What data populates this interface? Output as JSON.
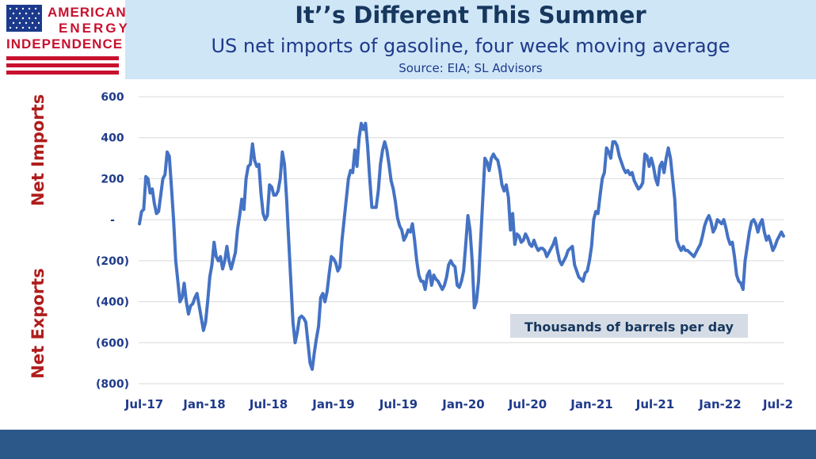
{
  "header": {
    "title": "It’’s Different This Summer",
    "subtitle": "US net imports of gasoline, four week moving average",
    "source": "Source: EIA; SL Advisors"
  },
  "logo": {
    "line1": "AMERICAN",
    "line2": "ENERGY",
    "line3": "INDEPENDENCE"
  },
  "side_labels": {
    "top": "Net Imports",
    "bottom": "Net Exports"
  },
  "colors": {
    "line": "#4472c4",
    "header_bg": "#cfe6f7",
    "title": "#17375e",
    "side_label": "#b01c1c",
    "footer": "#2c5789",
    "unit_box": "#d6dce5"
  },
  "chart_data": {
    "type": "line",
    "title": "It’’s Different This Summer",
    "subtitle": "US net imports of gasoline, four week moving average",
    "unit_label": "Thousands of barrels per day",
    "x_tick_labels": [
      "Jul-17",
      "Jan-18",
      "Jul-18",
      "Jan-19",
      "Jul-19",
      "Jan-20",
      "Jul-20",
      "Jan-21",
      "Jul-21",
      "Jan-22",
      "Jul-2"
    ],
    "y_tick_labels": [
      "600",
      "400",
      "200",
      "-",
      "(200)",
      "(400)",
      "(600)",
      "(800)"
    ],
    "ylim": [
      -800,
      600
    ],
    "grid": true,
    "series": [
      {
        "values": [
          -20,
          40,
          50,
          210,
          200,
          130,
          150,
          80,
          30,
          40,
          120,
          200,
          220,
          330,
          310,
          160,
          0,
          -200,
          -300,
          -400,
          -380,
          -310,
          -400,
          -460,
          -420,
          -410,
          -380,
          -360,
          -420,
          -480,
          -540,
          -500,
          -400,
          -280,
          -220,
          -110,
          -180,
          -200,
          -180,
          -240,
          -200,
          -130,
          -200,
          -240,
          -200,
          -160,
          -50,
          20,
          100,
          50,
          200,
          260,
          270,
          370,
          290,
          260,
          270,
          130,
          30,
          0,
          20,
          170,
          160,
          120,
          120,
          140,
          200,
          330,
          270,
          100,
          -100,
          -300,
          -500,
          -600,
          -550,
          -480,
          -470,
          -480,
          -500,
          -600,
          -700,
          -730,
          -650,
          -580,
          -520,
          -380,
          -360,
          -400,
          -350,
          -260,
          -180,
          -190,
          -210,
          -250,
          -230,
          -100,
          0,
          100,
          200,
          240,
          230,
          340,
          260,
          400,
          470,
          440,
          470,
          360,
          200,
          60,
          60,
          60,
          140,
          270,
          340,
          380,
          340,
          270,
          190,
          150,
          90,
          10,
          -30,
          -50,
          -100,
          -80,
          -50,
          -60,
          -20,
          -100,
          -200,
          -270,
          -300,
          -300,
          -340,
          -270,
          -250,
          -320,
          -270,
          -290,
          -300,
          -320,
          -340,
          -320,
          -280,
          -220,
          -200,
          -220,
          -230,
          -320,
          -330,
          -300,
          -250,
          -120,
          20,
          -50,
          -200,
          -430,
          -400,
          -300,
          -100,
          100,
          300,
          280,
          240,
          300,
          320,
          300,
          290,
          240,
          170,
          140,
          170,
          110,
          -50,
          30,
          -120,
          -70,
          -80,
          -110,
          -100,
          -70,
          -90,
          -120,
          -130,
          -100,
          -130,
          -150,
          -140,
          -140,
          -150,
          -180,
          -160,
          -140,
          -120,
          -90,
          -150,
          -200,
          -220,
          -200,
          -180,
          -150,
          -140,
          -130,
          -220,
          -250,
          -280,
          -290,
          -300,
          -260,
          -250,
          -200,
          -130,
          0,
          40,
          30,
          120,
          200,
          230,
          350,
          330,
          300,
          380,
          380,
          360,
          310,
          280,
          250,
          230,
          240,
          220,
          230,
          190,
          170,
          150,
          160,
          180,
          320,
          310,
          260,
          300,
          260,
          200,
          170,
          260,
          280,
          230,
          300,
          350,
          300,
          200,
          100,
          -100,
          -130,
          -150,
          -130,
          -150,
          -150,
          -160,
          -170,
          -180,
          -160,
          -140,
          -120,
          -80,
          -30,
          0,
          20,
          -10,
          -60,
          -40,
          0,
          -10,
          -20,
          0,
          -40,
          -90,
          -120,
          -110,
          -180,
          -270,
          -300,
          -310,
          -340,
          -200,
          -130,
          -60,
          -10,
          0,
          -20,
          -60,
          -20,
          0,
          -60,
          -100,
          -80,
          -110,
          -150,
          -130,
          -100,
          -80,
          -60,
          -80
        ]
      }
    ]
  }
}
